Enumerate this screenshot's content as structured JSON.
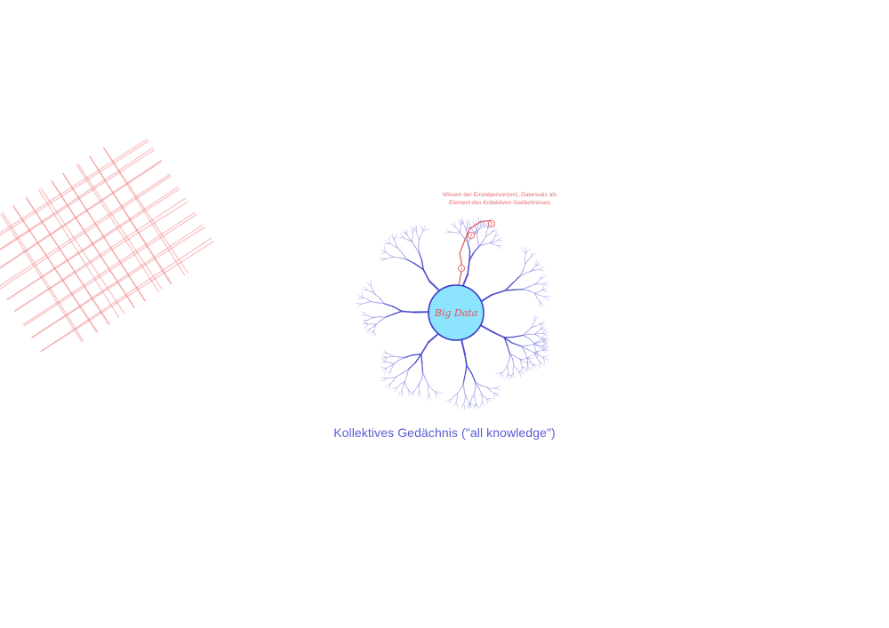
{
  "center_label": "Big Data",
  "caption": "Kollektives Gedächnis (\"all knowledge\")",
  "annotation": {
    "line1": "Wissen der Einzelperson(en), Datensatz als",
    "line2": "Element des Kollektiven Gedächnisses"
  },
  "markers": [
    "1",
    "2",
    "3"
  ],
  "colors": {
    "tree": "#3a3ac8",
    "tree_light": "#7a7ae0",
    "center_fill": "#8de4ff",
    "center_stroke": "#3a3ac8",
    "accent": "#e05555",
    "hatch": "#f08080"
  }
}
